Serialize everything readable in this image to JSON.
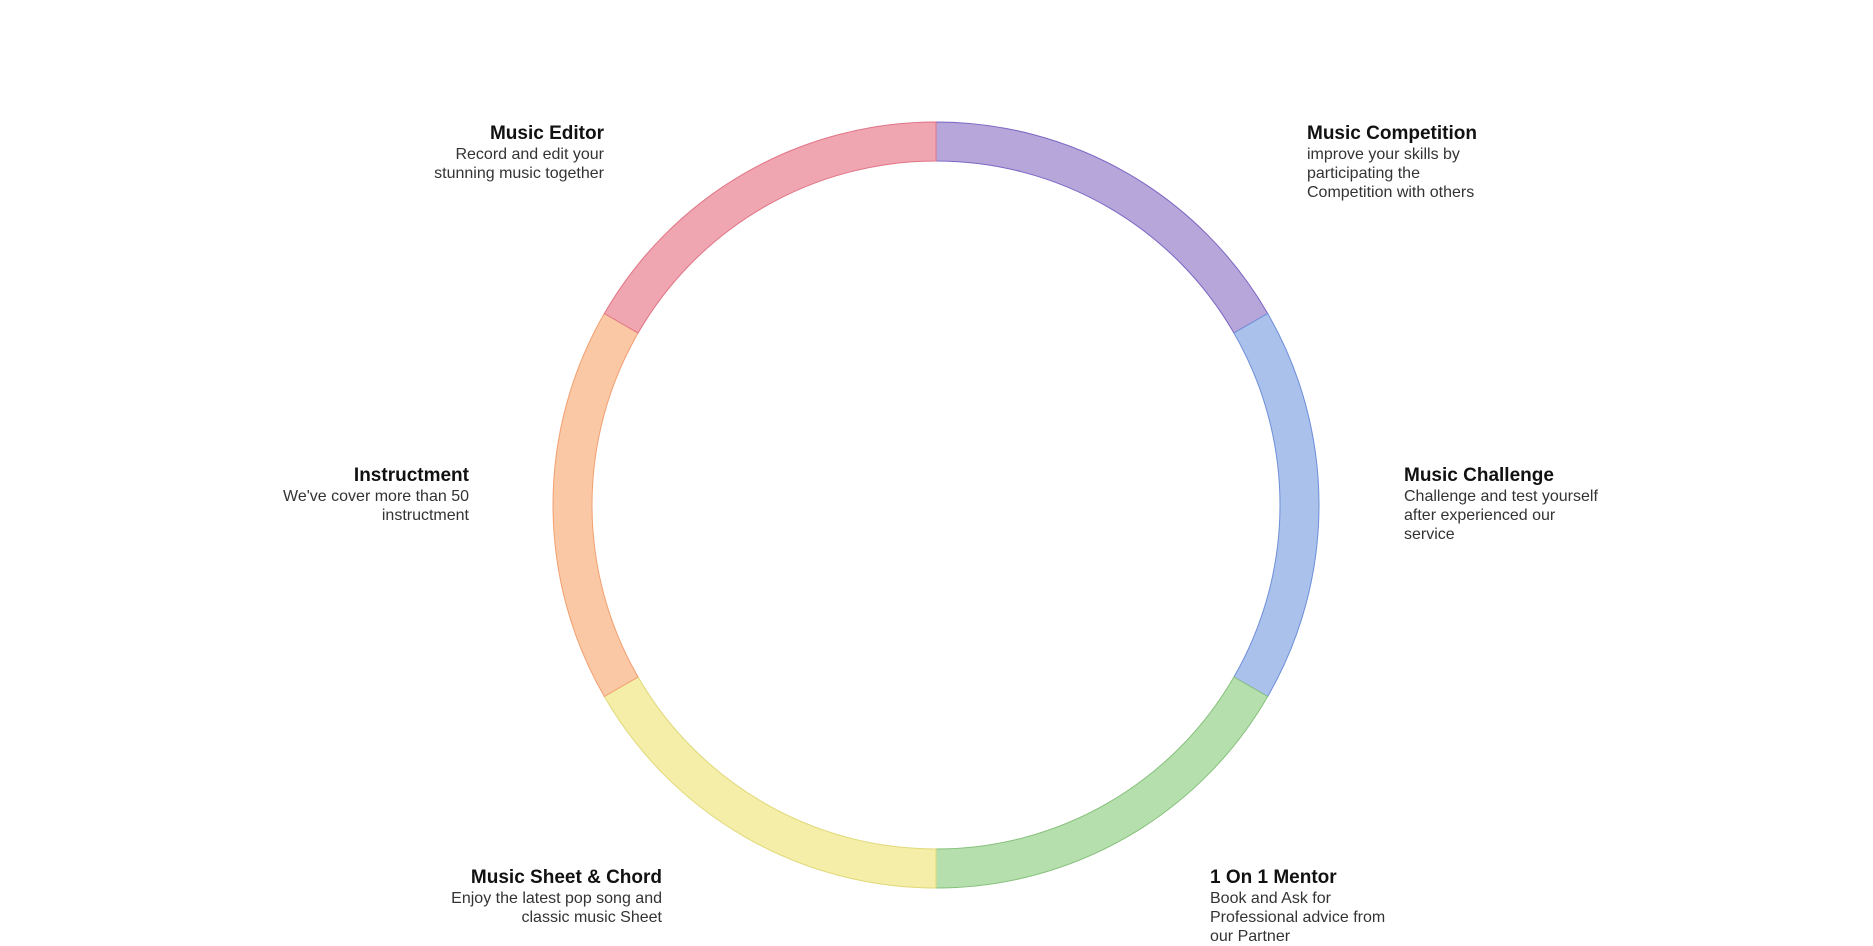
{
  "segments": [
    {
      "id": "music-competition",
      "title": "Music Competition",
      "description": "improve your skills by participating the Competition with others",
      "fill": "#b7a6da",
      "stroke": "#7b66c4"
    },
    {
      "id": "music-challenge",
      "title": "Music Challenge",
      "description": "Challenge and test yourself after experienced our service",
      "fill": "#a9c1eb",
      "stroke": "#6f8fd8"
    },
    {
      "id": "1-on-1-mentor",
      "title": "1 On 1 Mentor",
      "description": "Book and Ask for Professional advice from our Partner",
      "fill": "#b6dfae",
      "stroke": "#86c07a"
    },
    {
      "id": "music-sheet-chord",
      "title": "Music Sheet & Chord",
      "description": "Enjoy the latest pop song and classic music Sheet",
      "fill": "#f5eea8",
      "stroke": "#e0d878"
    },
    {
      "id": "instructment",
      "title": "Instructment",
      "description": "We've cover more than 50 instructment",
      "fill": "#fbc8a6",
      "stroke": "#f0a070"
    },
    {
      "id": "music-editor",
      "title": "Music Editor",
      "description": "Record and edit your stunning music together",
      "fill": "#f0a6b1",
      "stroke": "#e07485"
    }
  ]
}
